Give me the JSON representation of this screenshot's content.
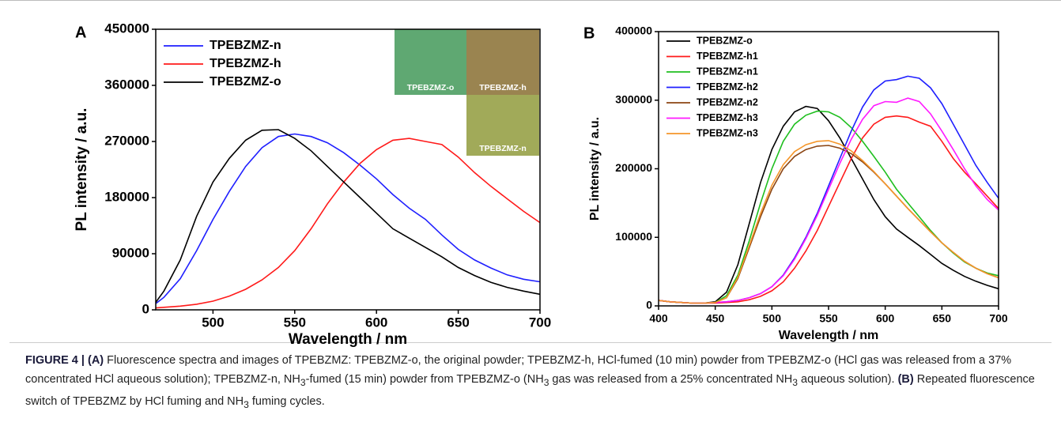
{
  "chart_data": [
    {
      "type": "line",
      "label": "A",
      "ylabel": "PL intensity / a.u.",
      "xlabel": "Wavelength / nm",
      "xlim": [
        465,
        700
      ],
      "ylim": [
        0,
        450000
      ],
      "xticks": [
        500,
        550,
        600,
        650,
        700
      ],
      "yticks": [
        0,
        90000,
        180000,
        270000,
        360000,
        450000
      ],
      "legend": "upper left",
      "x": [
        465,
        470,
        480,
        490,
        500,
        510,
        520,
        530,
        540,
        550,
        560,
        570,
        580,
        590,
        600,
        610,
        620,
        630,
        640,
        650,
        660,
        670,
        680,
        690,
        700
      ],
      "series": [
        {
          "name": "TPEBZMZ-n",
          "color": "#1f1fff",
          "values": [
            10000,
            20000,
            50000,
            95000,
            145000,
            190000,
            230000,
            260000,
            278000,
            282000,
            278000,
            268000,
            252000,
            232000,
            210000,
            185000,
            163000,
            145000,
            120000,
            97000,
            80000,
            67000,
            56000,
            49000,
            45000
          ]
        },
        {
          "name": "TPEBZMZ-h",
          "color": "#ff1a1a",
          "values": [
            3000,
            4000,
            6000,
            9000,
            14000,
            22000,
            33000,
            48000,
            68000,
            95000,
            130000,
            170000,
            205000,
            235000,
            257000,
            272000,
            275000,
            270000,
            265000,
            245000,
            220000,
            198000,
            178000,
            158000,
            140000
          ]
        },
        {
          "name": "TPEBZMZ-o",
          "color": "#000000",
          "values": [
            12000,
            30000,
            80000,
            150000,
            205000,
            243000,
            272000,
            288000,
            289000,
            275000,
            255000,
            230000,
            205000,
            180000,
            155000,
            130000,
            115000,
            100000,
            85000,
            68000,
            55000,
            44000,
            36000,
            30000,
            25000
          ]
        }
      ],
      "images": [
        {
          "label": "TPEBZMZ-o",
          "color": "#5fa872"
        },
        {
          "label": "TPEBZMZ-h",
          "color": "#9a8450"
        },
        {
          "label": "TPEBZMZ-n",
          "color": "#b8c25a"
        }
      ]
    },
    {
      "type": "line",
      "label": "B",
      "ylabel": "PL intensity / a.u.",
      "xlabel": "Wavelength / nm",
      "xlim": [
        400,
        700
      ],
      "ylim": [
        0,
        400000
      ],
      "xticks": [
        400,
        450,
        500,
        550,
        600,
        650,
        700
      ],
      "yticks": [
        0,
        100000,
        200000,
        300000,
        400000
      ],
      "legend": "upper left",
      "x": [
        400,
        410,
        420,
        430,
        440,
        450,
        460,
        470,
        480,
        490,
        500,
        510,
        520,
        530,
        540,
        550,
        560,
        570,
        580,
        590,
        600,
        610,
        620,
        630,
        640,
        650,
        660,
        670,
        680,
        690,
        700
      ],
      "series": [
        {
          "name": "TPEBZMZ-o",
          "color": "#000000",
          "values": [
            8000,
            6000,
            5000,
            4000,
            4000,
            6000,
            20000,
            60000,
            120000,
            180000,
            228000,
            262000,
            283000,
            291000,
            288000,
            270000,
            245000,
            215000,
            185000,
            155000,
            130000,
            112000,
            100000,
            88000,
            75000,
            62000,
            52000,
            43000,
            36000,
            30000,
            25000
          ]
        },
        {
          "name": "TPEBZMZ-h1",
          "color": "#ff1a1a",
          "values": [
            8000,
            6000,
            5000,
            4000,
            4000,
            4000,
            5000,
            6000,
            9000,
            14000,
            22000,
            35000,
            55000,
            80000,
            110000,
            145000,
            180000,
            215000,
            245000,
            265000,
            275000,
            277000,
            275000,
            268000,
            262000,
            240000,
            215000,
            195000,
            178000,
            160000,
            142000
          ]
        },
        {
          "name": "TPEBZMZ-n1",
          "color": "#1fbf1f",
          "values": [
            8000,
            6000,
            5000,
            4000,
            4000,
            5000,
            15000,
            45000,
            95000,
            150000,
            200000,
            240000,
            265000,
            278000,
            284000,
            283000,
            275000,
            260000,
            240000,
            218000,
            195000,
            170000,
            150000,
            130000,
            110000,
            92000,
            77000,
            64000,
            55000,
            48000,
            44000
          ]
        },
        {
          "name": "TPEBZMZ-h2",
          "color": "#1f1fff",
          "values": [
            8000,
            6000,
            5000,
            4000,
            4000,
            5000,
            6000,
            8000,
            12000,
            18000,
            28000,
            45000,
            70000,
            100000,
            135000,
            175000,
            215000,
            255000,
            290000,
            315000,
            328000,
            330000,
            335000,
            332000,
            318000,
            295000,
            265000,
            235000,
            205000,
            180000,
            157000
          ]
        },
        {
          "name": "TPEBZMZ-n2",
          "color": "#8b4513",
          "values": [
            8000,
            6000,
            5000,
            4000,
            4000,
            5000,
            12000,
            40000,
            85000,
            130000,
            170000,
            200000,
            218000,
            228000,
            233000,
            234000,
            230000,
            222000,
            210000,
            195000,
            178000,
            160000,
            142000,
            125000,
            108000,
            92000,
            78000,
            65000,
            55000,
            47000,
            41000
          ]
        },
        {
          "name": "TPEBZMZ-h3",
          "color": "#ff1aff",
          "values": [
            8000,
            6000,
            5000,
            4000,
            4000,
            5000,
            6000,
            8000,
            12000,
            18000,
            28000,
            44000,
            68000,
            98000,
            132000,
            170000,
            208000,
            243000,
            272000,
            292000,
            298000,
            297000,
            303000,
            298000,
            280000,
            255000,
            228000,
            200000,
            175000,
            155000,
            140000
          ]
        },
        {
          "name": "TPEBZMZ-n3",
          "color": "#f5962a",
          "values": [
            8000,
            6000,
            5000,
            4000,
            4000,
            5000,
            12000,
            42000,
            88000,
            135000,
            176000,
            206000,
            225000,
            235000,
            240000,
            241000,
            236000,
            226000,
            212000,
            196000,
            178000,
            160000,
            142000,
            125000,
            108000,
            92000,
            78000,
            65000,
            55000,
            47000,
            41000
          ]
        }
      ]
    }
  ],
  "caption": [
    {
      "text": "FIGURE 4 | (A)",
      "style": "b"
    },
    {
      "text": " Fluorescence spectra and images of TPEBZMZ: TPEBZMZ-o, the original powder; TPEBZMZ-h, HCl-fumed (10 min) powder from TPEBZMZ-o (HCl gas was released from a 37% concentrated HCl aqueous solution); TPEBZMZ-n, NH"
    },
    {
      "text": "3",
      "style": "sub"
    },
    {
      "text": "-fumed (15 min) powder from TPEBZMZ-o (NH"
    },
    {
      "text": "3",
      "style": "sub"
    },
    {
      "text": " gas was released from a 25% concentrated NH"
    },
    {
      "text": "3",
      "style": "sub"
    },
    {
      "text": " aqueous solution). "
    },
    {
      "text": "(B)",
      "style": "b"
    },
    {
      "text": " Repeated fluorescence switch of TPEBZMZ by HCl fuming and NH"
    },
    {
      "text": "3",
      "style": "sub"
    },
    {
      "text": " fuming cycles."
    }
  ]
}
